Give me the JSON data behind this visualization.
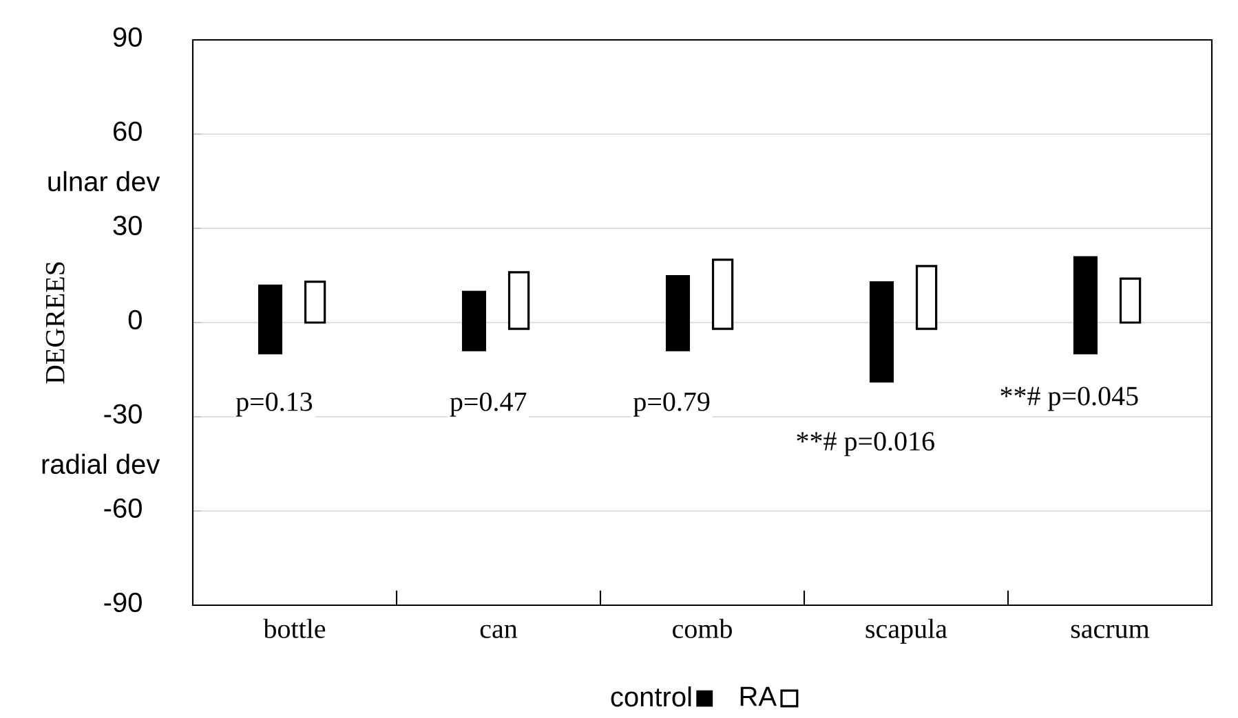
{
  "chart_data": {
    "type": "bar",
    "ylabel": "DEGREES",
    "categories": [
      "bottle",
      "can",
      "comb",
      "scapula",
      "sacrum"
    ],
    "series": [
      {
        "name": "control",
        "color": "#000000",
        "base": [
          -10,
          -9,
          -9,
          -19,
          -10
        ],
        "values": [
          22,
          19,
          24,
          32,
          31
        ]
      },
      {
        "name": "RA",
        "color": "#000000",
        "base": [
          0,
          -2,
          -2,
          -2,
          0
        ],
        "values": [
          13,
          18,
          22,
          20,
          14
        ]
      }
    ],
    "ylim": [
      -90,
      90
    ],
    "yticks": [
      -90,
      -60,
      -30,
      0,
      30,
      60,
      90
    ],
    "grid": "y",
    "legend": "bottom",
    "annotations": [
      "ulnar dev",
      "radial dev",
      "p=0.13",
      "p=0.47",
      "p=0.79",
      "**# p=0.016",
      "**# p=0.045"
    ]
  }
}
